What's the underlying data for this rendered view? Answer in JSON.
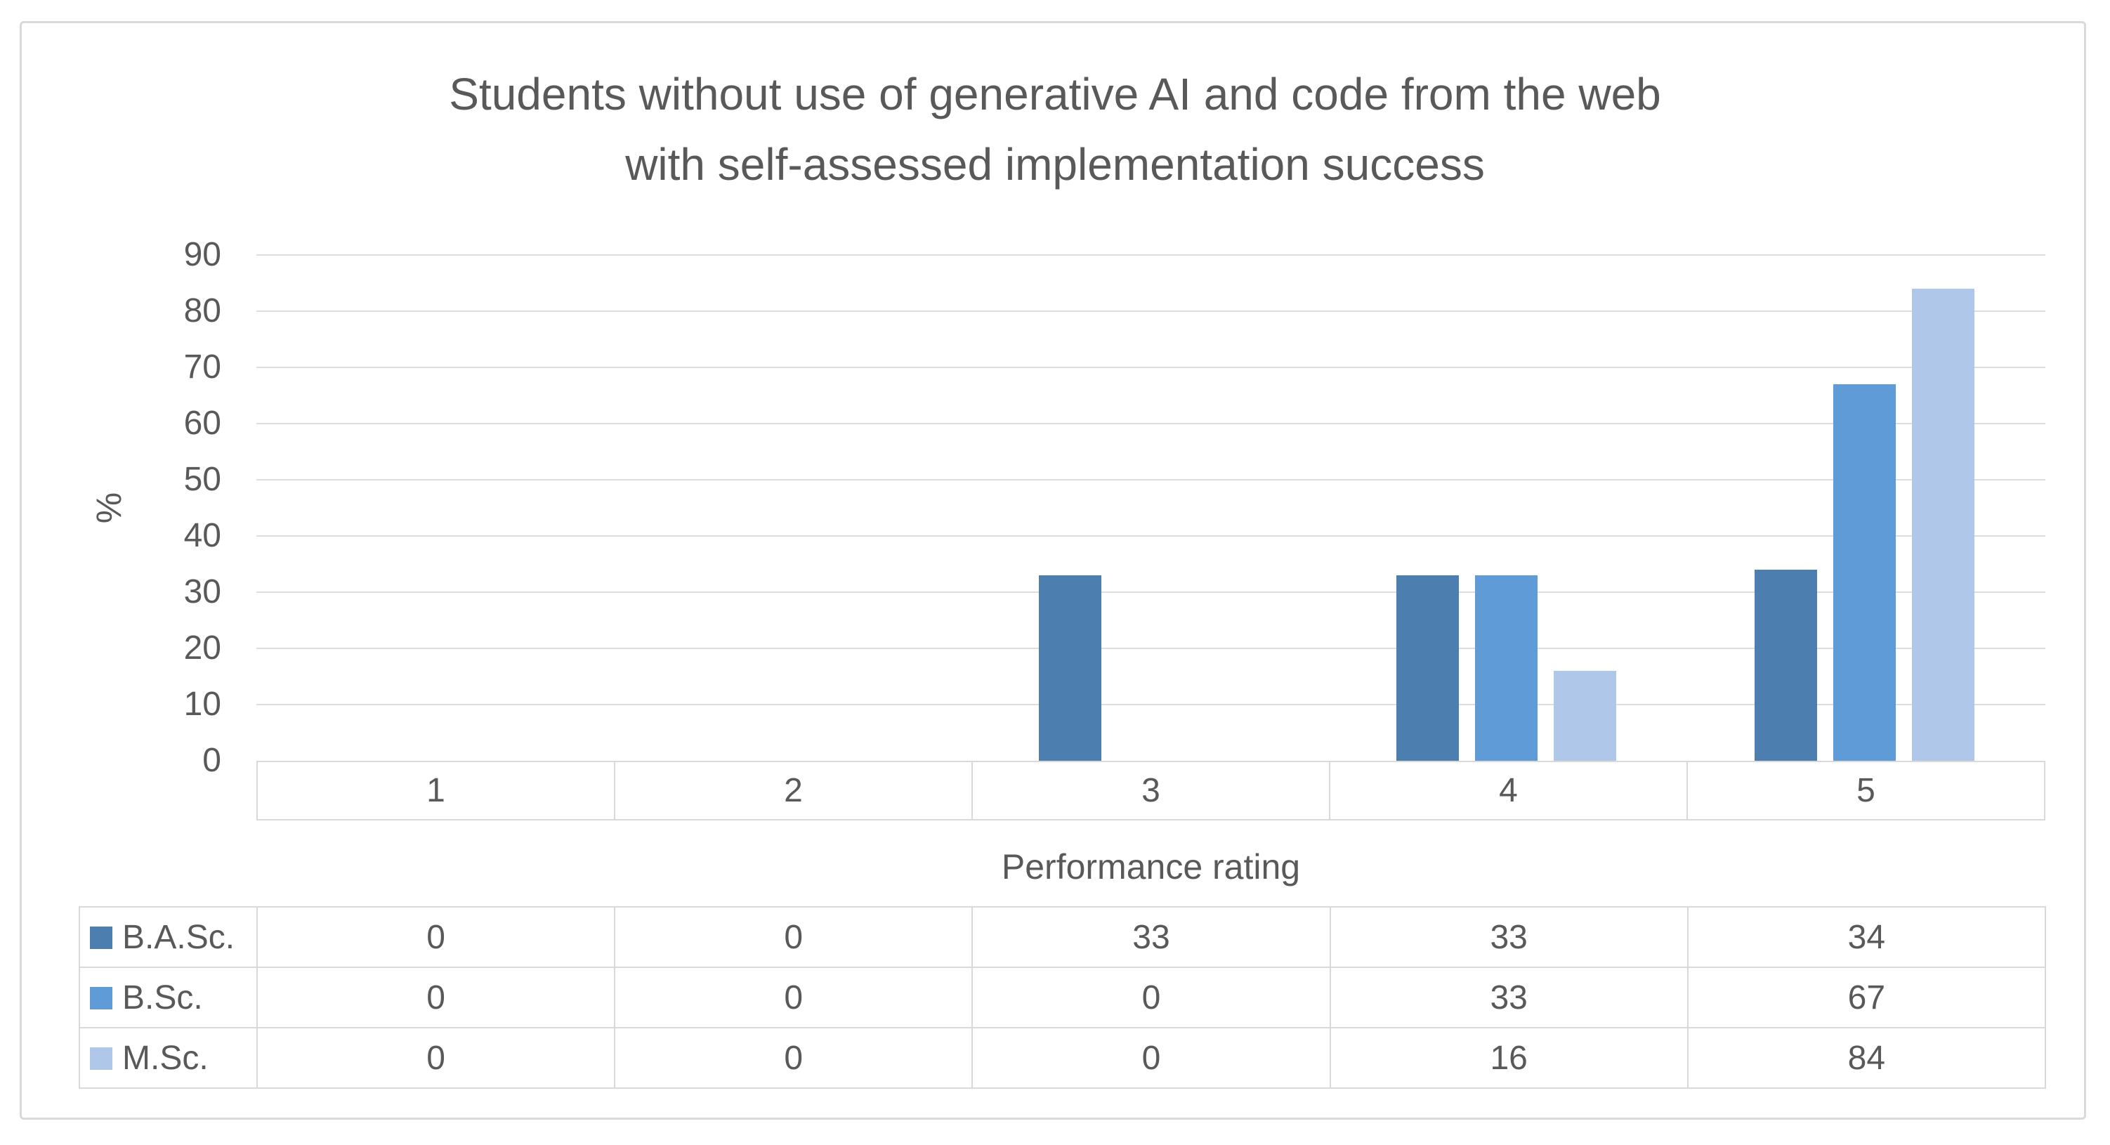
{
  "chart_data": {
    "type": "bar",
    "title": "Students without use of generative AI and code from the web with self-assessed implementation success",
    "title_lines": [
      "Students without use of generative AI and code from the web",
      "with self-assessed implementation success"
    ],
    "xlabel": "Performance rating",
    "ylabel": "%",
    "categories": [
      "1",
      "2",
      "3",
      "4",
      "5"
    ],
    "series": [
      {
        "name": "B.A.Sc.",
        "color": "#4C7EB0",
        "values": [
          0,
          0,
          33,
          33,
          34
        ]
      },
      {
        "name": "B.Sc.",
        "color": "#5E9BD7",
        "values": [
          0,
          0,
          0,
          33,
          67
        ]
      },
      {
        "name": "M.Sc.",
        "color": "#AFC7E8",
        "values": [
          0,
          0,
          0,
          16,
          84
        ]
      }
    ],
    "ylim": [
      0,
      90
    ],
    "y_ticks": [
      0,
      10,
      20,
      30,
      40,
      50,
      60,
      70,
      80,
      90
    ],
    "grid": true,
    "legend_position": "data-table-left",
    "colors": {
      "text": "#595959",
      "gridline": "#DDDDDD",
      "table_border": "#D9D9D9",
      "frame_border": "#D9D9D9",
      "background": "#FFFFFF"
    }
  }
}
